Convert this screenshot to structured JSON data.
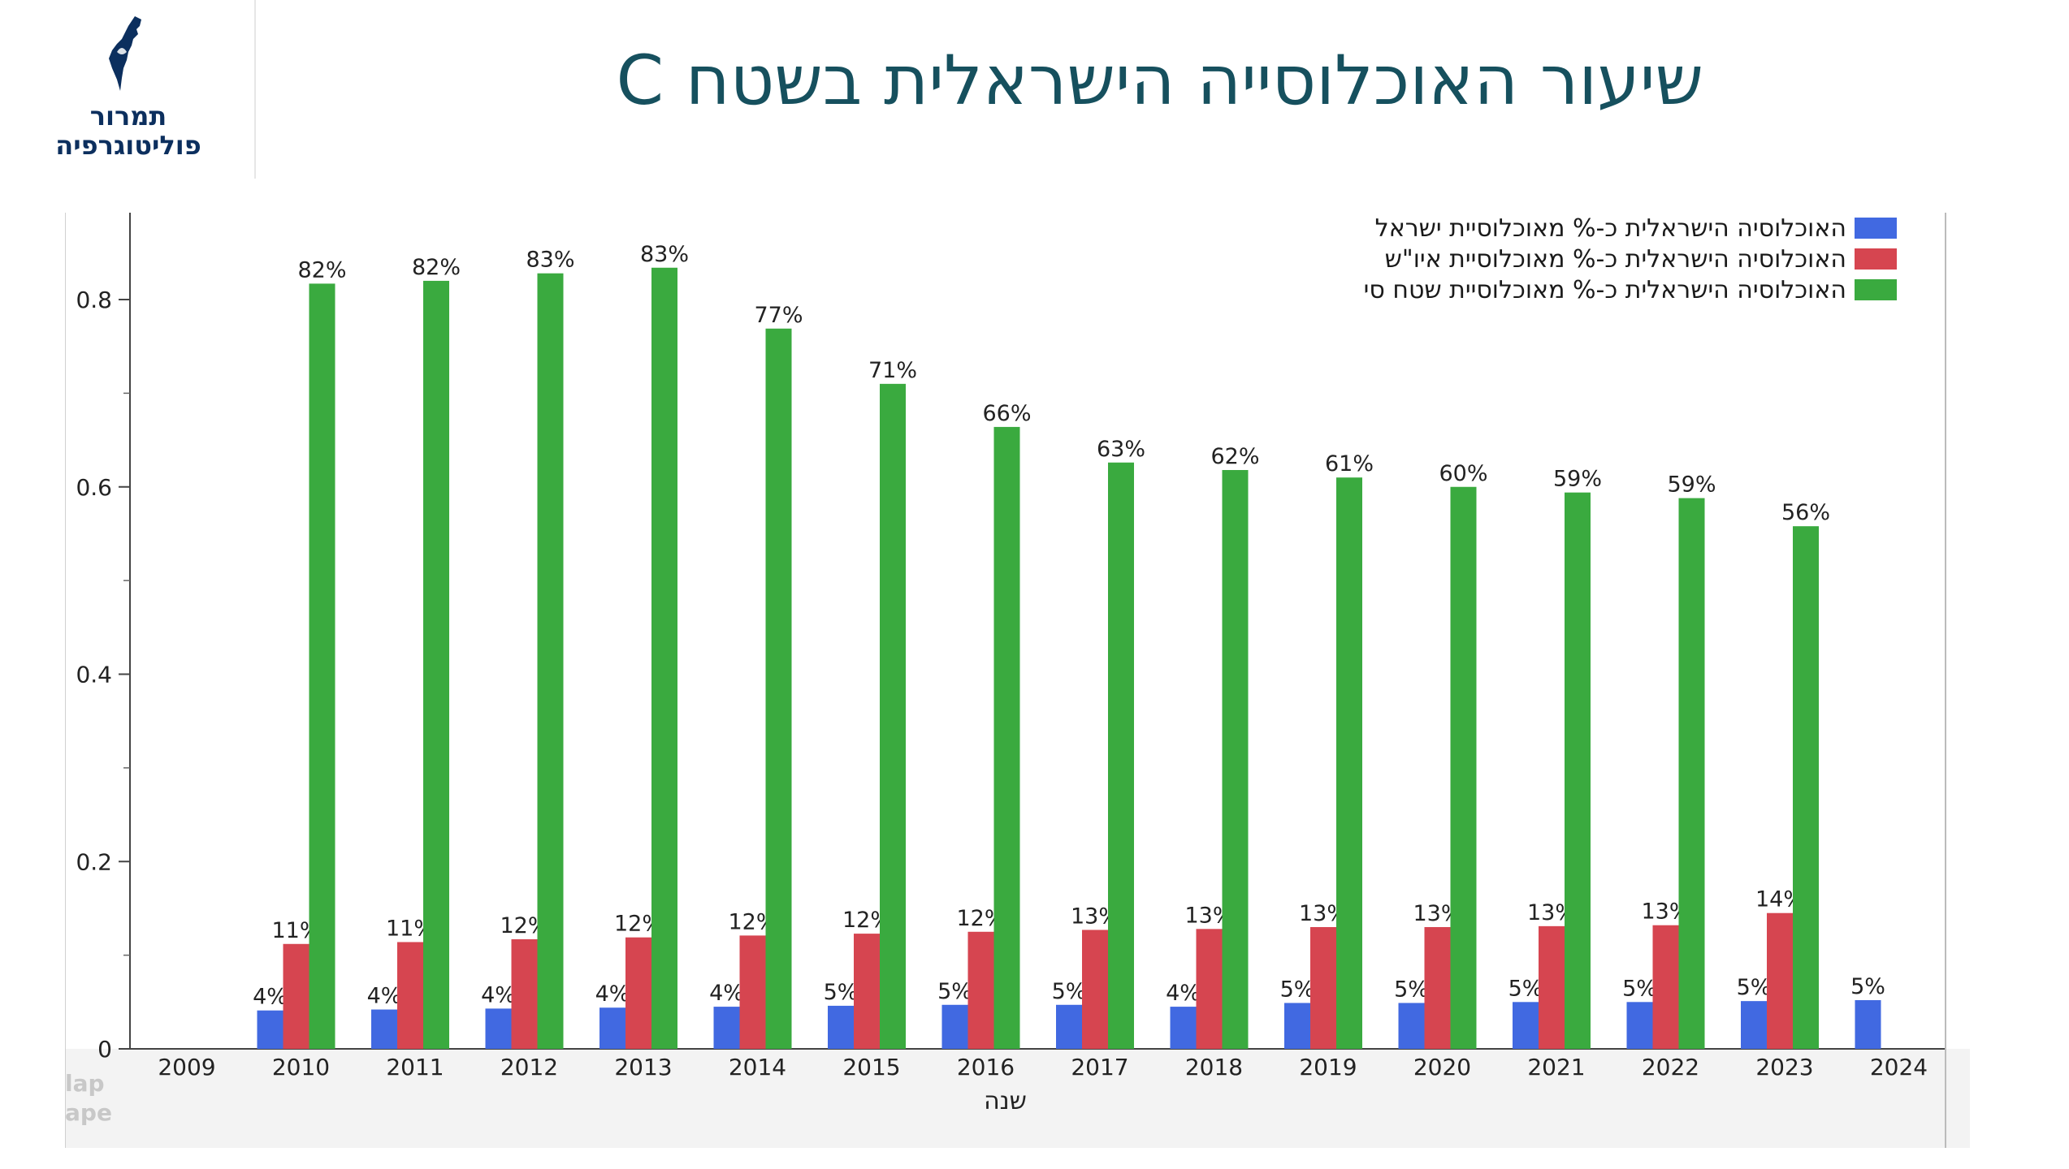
{
  "header": {
    "logo_line1": "תמרור",
    "logo_line2": "פוליטוגרפיה",
    "title": "שיעור האוכלוסייה הישראלית בשטח  C"
  },
  "watermark": {
    "line1": "lap",
    "line2": "ape"
  },
  "colors": {
    "blue": "#4169e1",
    "red": "#d64550",
    "green": "#3aaa3f",
    "title": "#16505e",
    "logo": "#0c2f5e"
  },
  "chart_data": {
    "type": "bar",
    "xlabel": "שנה",
    "ylabel": "",
    "ylim": [
      0,
      0.88
    ],
    "yticks": [
      0,
      0.2,
      0.4,
      0.6,
      0.8
    ],
    "ytick_labels": [
      "0",
      "0.2",
      "0.4",
      "0.6",
      "0.8"
    ],
    "grid": false,
    "legend_position": "top-right",
    "categories": [
      "2009",
      "2010",
      "2011",
      "2012",
      "2013",
      "2014",
      "2015",
      "2016",
      "2017",
      "2018",
      "2019",
      "2020",
      "2021",
      "2022",
      "2023",
      "2024"
    ],
    "series": [
      {
        "name": "האוכלוסיה הישראלית כ-%  מאוכלוסיית ישראל",
        "color": "#4169e1",
        "values": [
          null,
          0.041,
          0.042,
          0.043,
          0.044,
          0.045,
          0.046,
          0.047,
          0.047,
          0.045,
          0.049,
          0.049,
          0.05,
          0.05,
          0.051,
          0.052
        ],
        "labels": [
          "",
          "4%",
          "4%",
          "4%",
          "4%",
          "4%",
          "5%",
          "5%",
          "5%",
          "4%",
          "5%",
          "5%",
          "5%",
          "5%",
          "5%",
          "5%"
        ]
      },
      {
        "name": "האוכלוסיה הישראלית כ-% מאוכלוסיית איו\"ש",
        "color": "#d64550",
        "values": [
          null,
          0.112,
          0.114,
          0.117,
          0.119,
          0.121,
          0.123,
          0.125,
          0.127,
          0.128,
          0.13,
          0.13,
          0.131,
          0.132,
          0.145,
          null
        ],
        "labels": [
          "",
          "11%",
          "11%",
          "12%",
          "12%",
          "12%",
          "12%",
          "12%",
          "13%",
          "13%",
          "13%",
          "13%",
          "13%",
          "13%",
          "14%",
          ""
        ]
      },
      {
        "name": "האוכלוסיה הישראלית כ-% מאוכלוסיית שטח סי",
        "color": "#3aaa3f",
        "values": [
          null,
          0.817,
          0.82,
          0.828,
          0.834,
          0.769,
          0.71,
          0.664,
          0.626,
          0.618,
          0.61,
          0.6,
          0.594,
          0.588,
          0.558,
          null
        ],
        "labels": [
          "",
          "82%",
          "82%",
          "83%",
          "83%",
          "77%",
          "71%",
          "66%",
          "63%",
          "62%",
          "61%",
          "60%",
          "59%",
          "59%",
          "56%",
          ""
        ]
      }
    ]
  }
}
